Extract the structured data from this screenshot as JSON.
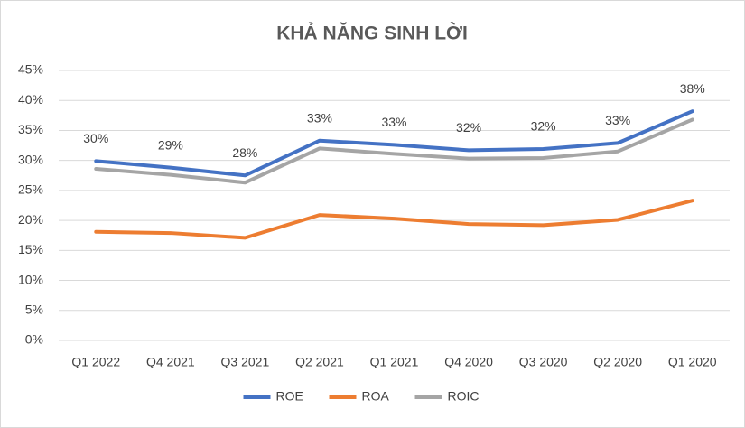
{
  "chart_data": {
    "type": "line",
    "title": "KHẢ NĂNG SINH LỜI",
    "categories": [
      "Q1 2022",
      "Q4 2021",
      "Q3 2021",
      "Q2 2021",
      "Q1 2021",
      "Q4 2020",
      "Q3 2020",
      "Q2 2020",
      "Q1 2020"
    ],
    "series": [
      {
        "name": "ROE",
        "color": "#4472c4",
        "values": [
          29.9,
          28.8,
          27.5,
          33.3,
          32.6,
          31.7,
          31.9,
          32.9,
          38.2
        ],
        "value_labels": [
          "30%",
          "29%",
          "28%",
          "33%",
          "33%",
          "32%",
          "32%",
          "33%",
          "38%"
        ]
      },
      {
        "name": "ROA",
        "color": "#ed7d31",
        "values": [
          18.1,
          17.9,
          17.1,
          20.9,
          20.3,
          19.4,
          19.2,
          20.1,
          23.3
        ]
      },
      {
        "name": "ROIC",
        "color": "#a5a5a5",
        "values": [
          28.6,
          27.6,
          26.3,
          32.0,
          31.1,
          30.3,
          30.4,
          31.5,
          36.8
        ]
      }
    ],
    "ylim": [
      0,
      45
    ],
    "yticks": [
      {
        "value": 0,
        "label": "0%"
      },
      {
        "value": 5,
        "label": "5%"
      },
      {
        "value": 10,
        "label": "10%"
      },
      {
        "value": 15,
        "label": "15%"
      },
      {
        "value": 20,
        "label": "20%"
      },
      {
        "value": 25,
        "label": "25%"
      },
      {
        "value": 30,
        "label": "30%"
      },
      {
        "value": 35,
        "label": "35%"
      },
      {
        "value": 40,
        "label": "40%"
      },
      {
        "value": 45,
        "label": "45%"
      }
    ],
    "grid": true,
    "legend": "bottom"
  }
}
